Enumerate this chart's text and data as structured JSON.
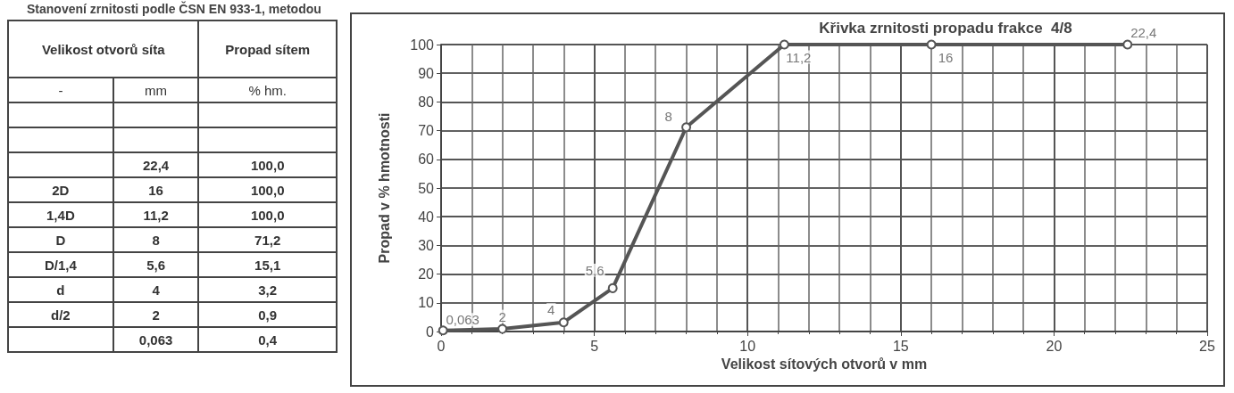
{
  "chart_data": [
    {
      "type": "other",
      "title": "Stanovení zrnitosti podle ČSN EN 933-1, metodou",
      "annotations": [
        "Velikost otvorů síta",
        "Propad sítem",
        "-",
        "mm",
        "% hm."
      ],
      "y_categories": [
        null,
        null,
        null,
        "2D",
        "1,4D",
        "D",
        "D/1,4",
        "d",
        "d/2",
        null
      ],
      "cell_labels": [
        [
          null,
          null
        ],
        [
          null,
          null
        ],
        [
          "22,4",
          "100,0"
        ],
        [
          "16",
          "100,0"
        ],
        [
          "11,2",
          "100,0"
        ],
        [
          "8",
          "71,2"
        ],
        [
          "5,6",
          "15,1"
        ],
        [
          "4",
          "3,2"
        ],
        [
          "2",
          "0,9"
        ],
        [
          "0,063",
          "0,4"
        ]
      ]
    },
    {
      "type": "line",
      "title": "Křivka zrnitosti propadu frakce  4/8",
      "xlabel": "Velikost sítových otvorů v mm",
      "ylabel": "Propad v % hmotnosti",
      "x": [
        0.063,
        2,
        4,
        5.6,
        8,
        11.2,
        16,
        22.4
      ],
      "series": [
        {
          "color": "#555555",
          "values": [
            0.4,
            0.9,
            3.2,
            15.1,
            71.2,
            100.0,
            100.0,
            100.0
          ]
        }
      ],
      "annotations": [
        {
          "text": "0,063",
          "x": 0.063,
          "y": 0.4
        },
        {
          "text": "2",
          "x": 2,
          "y": 0.9
        },
        {
          "text": "4",
          "x": 4,
          "y": 3.2
        },
        {
          "text": "5,6",
          "x": 5.6,
          "y": 15.1
        },
        {
          "text": "8",
          "x": 8,
          "y": 71.2
        },
        {
          "text": "11,2",
          "x": 11.2,
          "y": 100.0
        },
        {
          "text": "16",
          "x": 16,
          "y": 100.0
        },
        {
          "text": "22,4",
          "x": 22.4,
          "y": 100.0
        }
      ],
      "xlim": [
        0,
        25
      ],
      "xticks": [
        0,
        5,
        10,
        15,
        20,
        25
      ],
      "ylim": [
        0,
        100
      ],
      "yticks": [
        0,
        10,
        20,
        30,
        40,
        50,
        60,
        70,
        80,
        90,
        100
      ],
      "grid": true,
      "marker": "circle",
      "line_style": "solid"
    }
  ]
}
